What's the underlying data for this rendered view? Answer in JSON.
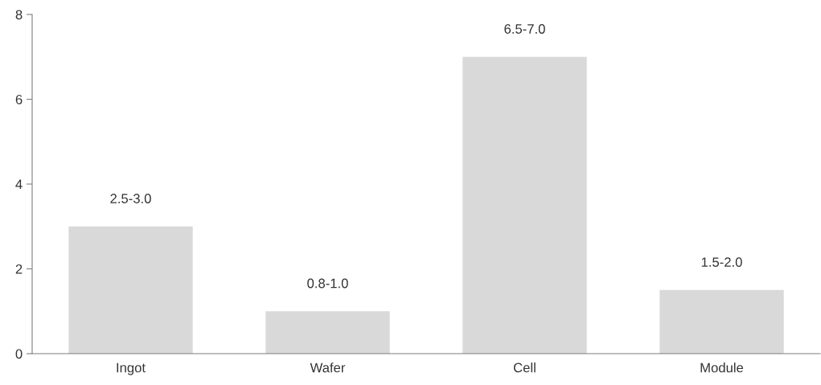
{
  "chart_data": {
    "type": "bar",
    "categories": [
      "Ingot",
      "Wafer",
      "Cell",
      "Module"
    ],
    "values": [
      3.0,
      1.0,
      7.0,
      1.5
    ],
    "value_labels": [
      "2.5-3.0",
      "0.8-1.0",
      "6.5-7.0",
      "1.5-2.0"
    ],
    "color": "#d9d9d9",
    "ylim": [
      0,
      8
    ],
    "yticks": [
      0,
      2,
      4,
      6,
      8
    ],
    "grid": false
  }
}
